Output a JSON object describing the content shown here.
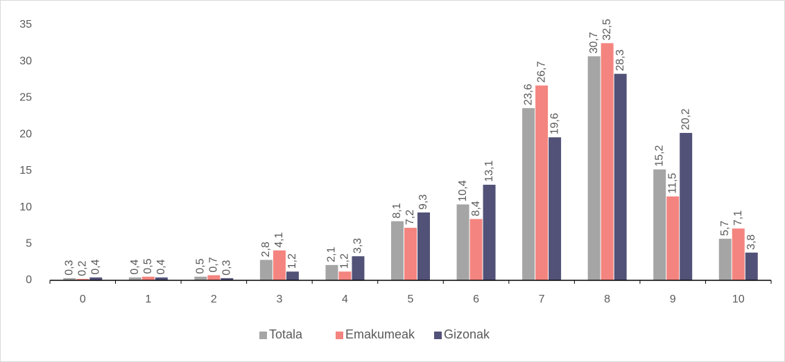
{
  "chart_data": {
    "type": "bar",
    "categories": [
      "0",
      "1",
      "2",
      "3",
      "4",
      "5",
      "6",
      "7",
      "8",
      "9",
      "10"
    ],
    "series": [
      {
        "name": "Totala",
        "color": "#a5a5a5",
        "values": [
          0.3,
          0.4,
          0.5,
          2.8,
          2.1,
          8.1,
          10.4,
          23.6,
          30.7,
          15.2,
          5.7
        ],
        "value_labels": [
          "0,3",
          "0,4",
          "0,5",
          "2,8",
          "2,1",
          "8,1",
          "10,4",
          "23,6",
          "30,7",
          "15,2",
          "5,7"
        ]
      },
      {
        "name": "Emakumeak",
        "color": "#f4847f",
        "values": [
          0.2,
          0.5,
          0.7,
          4.1,
          1.2,
          7.2,
          8.4,
          26.7,
          32.5,
          11.5,
          7.1
        ],
        "value_labels": [
          "0,2",
          "0,5",
          "0,7",
          "4,1",
          "1,2",
          "7,2",
          "8,4",
          "26,7",
          "32,5",
          "11,5",
          "7,1"
        ]
      },
      {
        "name": "Gizonak",
        "color": "#525278",
        "values": [
          0.4,
          0.4,
          0.3,
          1.2,
          3.3,
          9.3,
          13.1,
          19.6,
          28.3,
          20.2,
          3.8
        ],
        "value_labels": [
          "0,4",
          "0,4",
          "0,3",
          "1,2",
          "3,3",
          "9,3",
          "13,1",
          "19,6",
          "28,3",
          "20,2",
          "3,8"
        ]
      }
    ],
    "ylim": [
      0,
      35
    ],
    "yticks": [
      0,
      5,
      10,
      15,
      20,
      25,
      30,
      35
    ],
    "grid": false,
    "legend": "bottom"
  }
}
